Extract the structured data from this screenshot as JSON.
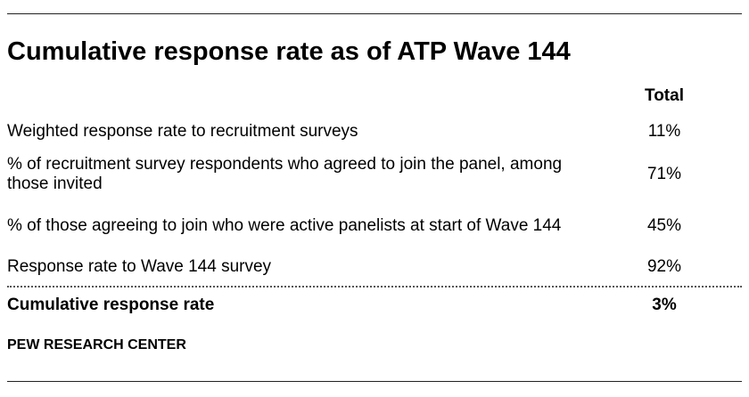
{
  "title": "Cumulative response rate as of ATP Wave 144",
  "table": {
    "column_header": "Total",
    "rows": [
      {
        "label": "Weighted response rate to recruitment surveys",
        "value": "11%"
      },
      {
        "label": "% of recruitment survey respondents who agreed to join the panel, among those invited",
        "value": "71%"
      },
      {
        "label": "% of those agreeing to join who were active panelists at start of Wave 144",
        "value": "45%"
      },
      {
        "label": "Response rate to Wave 144 survey",
        "value": "92%"
      }
    ],
    "total_row": {
      "label": "Cumulative response rate",
      "value": "3%"
    }
  },
  "source": "PEW RESEARCH CENTER"
}
